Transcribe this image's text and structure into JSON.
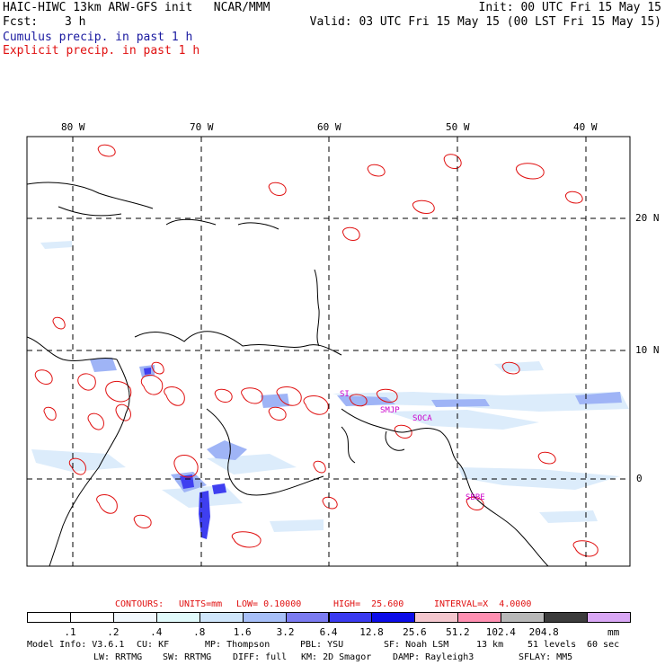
{
  "header": {
    "title_left": "HAIC-HIWC 13km ARW-GFS init   NCAR/MMM",
    "init": "Init: 00 UTC Fri 15 May 15",
    "fcst_label": "Fcst:",
    "fcst_value": "3 h",
    "valid": "Valid: 03 UTC Fri 15 May 15 (00 LST Fri 15 May 15)",
    "cumulus": "Cumulus precip. in past 1 h",
    "explicit": "Explicit precip. in past 1 h"
  },
  "map": {
    "lon_labels": [
      "80 W",
      "70 W",
      "60 W",
      "50 W",
      "40 W"
    ],
    "lat_labels": [
      "20 N",
      "10 N",
      "0"
    ],
    "stations": [
      "SMJP",
      "SOCA",
      "SBBE",
      "SI"
    ],
    "colors": {
      "coast": "#000000",
      "explicit_contour": "#e01010",
      "cumulus_light": "#cfe6fb",
      "cumulus_mid": "#8a9cf5",
      "cumulus_dark": "#3a3af0"
    }
  },
  "contours_line": {
    "label": "CONTOURS:",
    "units": "UNITS=mm",
    "low": "LOW= 0.10000",
    "high": "HIGH=  25.600",
    "interval": "INTERVAL=X  4.0000"
  },
  "colorbar": {
    "unit": "mm",
    "labels": [
      ".1",
      ".2",
      ".4",
      ".8",
      "1.6",
      "3.2",
      "6.4",
      "12.8",
      "25.6",
      "51.2",
      "102.4",
      "204.8"
    ],
    "colors": [
      "#ffffff",
      "#ffffff",
      "#f2f8fd",
      "#e1fafb",
      "#cfe6fb",
      "#a7bff8",
      "#7b7bf1",
      "#3a3af0",
      "#0c0ce8",
      "#f4c7ce",
      "#ff8fb1",
      "#b8b8b8",
      "#3c3c3c",
      "#d9a7f5"
    ]
  },
  "footer": {
    "model_info": "Model Info: V3.6.1",
    "cu": "CU: KF",
    "mp": "MP: Thompson",
    "pbl": "PBL: YSU",
    "sf": "SF: Noah LSM",
    "res": "13 km",
    "levels": "51 levels",
    "dt": "60 sec",
    "lw": "LW: RRTMG",
    "sw": "SW: RRTMG",
    "diff": "DIFF: full",
    "km": "KM: 2D Smagor",
    "damp": "DAMP: Rayleigh3",
    "sflay": "SFLAY: MM5"
  }
}
